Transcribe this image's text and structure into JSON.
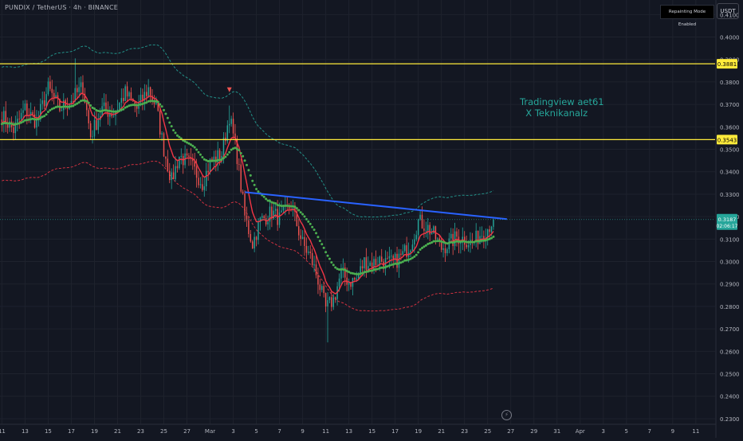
{
  "header": {
    "symbol_title": "PUNDIX / TetherUS · 4h · BINANCE",
    "repaint_badge": "Repainting Mode Enabled",
    "currency": "USDT"
  },
  "watermark": {
    "line1": "Tradingview aet61",
    "line2": "  X Teknikanalz"
  },
  "lightning_icon": "⚡",
  "colors": {
    "background": "#131722",
    "up_candle": "#26a69a",
    "down_candle": "#ef5350",
    "horizontal_level": "#ffeb3b",
    "trendline": "#2962ff",
    "ema_fast": "#f23645",
    "ema_slow": "#4caf50",
    "band_upper": "#26a69a",
    "band_lower": "#f23645"
  },
  "chart_data": {
    "type": "candlestick",
    "ylim": [
      0.2275,
      0.4165
    ],
    "y_ticks": [
      "0.2300",
      "0.2400",
      "0.2500",
      "0.2600",
      "0.2700",
      "0.2800",
      "0.2900",
      "0.3000",
      "0.3100",
      "0.3200",
      "0.3300",
      "0.3400",
      "0.3500",
      "0.3600",
      "0.3700",
      "0.3800",
      "0.3900",
      "0.4000",
      "0.4100"
    ],
    "x_ticks": [
      {
        "label": "11",
        "i": 0
      },
      {
        "label": "13",
        "i": 12
      },
      {
        "label": "15",
        "i": 24
      },
      {
        "label": "17",
        "i": 36
      },
      {
        "label": "19",
        "i": 48
      },
      {
        "label": "21",
        "i": 60
      },
      {
        "label": "23",
        "i": 72
      },
      {
        "label": "25",
        "i": 84
      },
      {
        "label": "27",
        "i": 96
      },
      {
        "label": "Mar",
        "i": 108
      },
      {
        "label": "3",
        "i": 120
      },
      {
        "label": "5",
        "i": 132
      },
      {
        "label": "7",
        "i": 144
      },
      {
        "label": "9",
        "i": 156
      },
      {
        "label": "11",
        "i": 168
      },
      {
        "label": "13",
        "i": 180
      },
      {
        "label": "15",
        "i": 192
      },
      {
        "label": "17",
        "i": 204
      },
      {
        "label": "19",
        "i": 216
      },
      {
        "label": "21",
        "i": 228
      },
      {
        "label": "23",
        "i": 240
      },
      {
        "label": "25",
        "i": 252
      },
      {
        "label": "27",
        "i": 264
      },
      {
        "label": "29",
        "i": 276
      },
      {
        "label": "31",
        "i": 288
      },
      {
        "label": "Apr",
        "i": 300
      },
      {
        "label": "3",
        "i": 312
      },
      {
        "label": "5",
        "i": 324
      },
      {
        "label": "7",
        "i": 336
      },
      {
        "label": "9",
        "i": 348
      },
      {
        "label": "11",
        "i": 360
      }
    ],
    "x_index_range": [
      -1,
      370
    ],
    "levels": [
      {
        "value": 0.3881,
        "label": "0.3881"
      },
      {
        "value": 0.3543,
        "label": "0.3543"
      }
    ],
    "last_price": {
      "value": 0.3187,
      "label": "0.3187",
      "countdown": "02:06:17"
    },
    "trendline": {
      "i1": 126,
      "v1": 0.3309,
      "i2": 262,
      "v2": 0.3189
    },
    "sell_marker": {
      "i": 118,
      "value": 0.3765
    },
    "anchors": [
      {
        "i": 0,
        "v": 0.365
      },
      {
        "i": 6,
        "v": 0.3585
      },
      {
        "i": 12,
        "v": 0.368
      },
      {
        "i": 18,
        "v": 0.362
      },
      {
        "i": 24,
        "v": 0.377
      },
      {
        "i": 30,
        "v": 0.368
      },
      {
        "i": 36,
        "v": 0.372
      },
      {
        "i": 42,
        "v": 0.378
      },
      {
        "i": 46,
        "v": 0.356
      },
      {
        "i": 52,
        "v": 0.368
      },
      {
        "i": 58,
        "v": 0.366
      },
      {
        "i": 64,
        "v": 0.375
      },
      {
        "i": 70,
        "v": 0.368
      },
      {
        "i": 76,
        "v": 0.377
      },
      {
        "i": 80,
        "v": 0.369
      },
      {
        "i": 84,
        "v": 0.35
      },
      {
        "i": 88,
        "v": 0.336
      },
      {
        "i": 92,
        "v": 0.347
      },
      {
        "i": 98,
        "v": 0.343
      },
      {
        "i": 104,
        "v": 0.335
      },
      {
        "i": 108,
        "v": 0.344
      },
      {
        "i": 114,
        "v": 0.348
      },
      {
        "i": 118,
        "v": 0.365
      },
      {
        "i": 122,
        "v": 0.347
      },
      {
        "i": 126,
        "v": 0.32
      },
      {
        "i": 130,
        "v": 0.308
      },
      {
        "i": 134,
        "v": 0.318
      },
      {
        "i": 140,
        "v": 0.322
      },
      {
        "i": 144,
        "v": 0.319
      },
      {
        "i": 150,
        "v": 0.325
      },
      {
        "i": 156,
        "v": 0.308
      },
      {
        "i": 160,
        "v": 0.302
      },
      {
        "i": 164,
        "v": 0.292
      },
      {
        "i": 168,
        "v": 0.279
      },
      {
        "i": 172,
        "v": 0.283
      },
      {
        "i": 176,
        "v": 0.295
      },
      {
        "i": 180,
        "v": 0.291
      },
      {
        "i": 184,
        "v": 0.292
      },
      {
        "i": 188,
        "v": 0.3
      },
      {
        "i": 192,
        "v": 0.299
      },
      {
        "i": 196,
        "v": 0.301
      },
      {
        "i": 200,
        "v": 0.299
      },
      {
        "i": 204,
        "v": 0.3
      },
      {
        "i": 208,
        "v": 0.303
      },
      {
        "i": 212,
        "v": 0.308
      },
      {
        "i": 216,
        "v": 0.318
      },
      {
        "i": 220,
        "v": 0.316
      },
      {
        "i": 224,
        "v": 0.312
      },
      {
        "i": 228,
        "v": 0.306
      },
      {
        "i": 232,
        "v": 0.308
      },
      {
        "i": 236,
        "v": 0.311
      },
      {
        "i": 240,
        "v": 0.31
      },
      {
        "i": 244,
        "v": 0.308
      },
      {
        "i": 248,
        "v": 0.312
      },
      {
        "i": 252,
        "v": 0.315
      },
      {
        "i": 255,
        "v": 0.3187
      }
    ]
  }
}
